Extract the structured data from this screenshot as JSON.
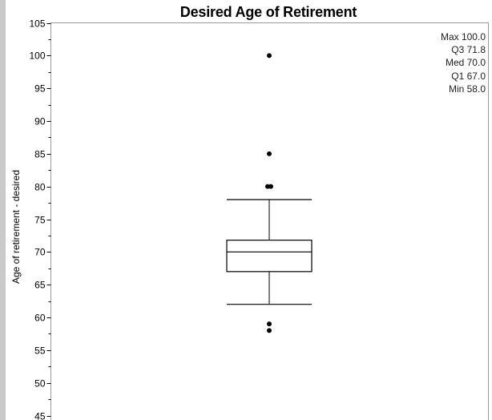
{
  "chart_data": {
    "type": "boxplot",
    "title": "Desired Age of Retirement",
    "ylabel": "Age of retirement - desired",
    "ylim": [
      45,
      105
    ],
    "yticks": [
      45,
      50,
      55,
      60,
      65,
      70,
      75,
      80,
      85,
      90,
      95,
      100,
      105
    ],
    "box": {
      "whisker_low": 62,
      "q1": 67,
      "median": 70,
      "q3": 71.8,
      "whisker_high": 78
    },
    "outliers": [
      {
        "x": 0,
        "y": 100
      },
      {
        "x": 0,
        "y": 85
      },
      {
        "x": -0.04,
        "y": 80
      },
      {
        "x": 0.04,
        "y": 80
      },
      {
        "x": 0,
        "y": 59
      },
      {
        "x": 0,
        "y": 58
      }
    ],
    "stats": [
      {
        "label": "Max",
        "value": "100.0"
      },
      {
        "label": "Q3",
        "value": "71.8"
      },
      {
        "label": "Med",
        "value": "70.0"
      },
      {
        "label": "Q1",
        "value": "67.0"
      },
      {
        "label": "Min",
        "value": "58.0"
      }
    ],
    "grid": false
  }
}
